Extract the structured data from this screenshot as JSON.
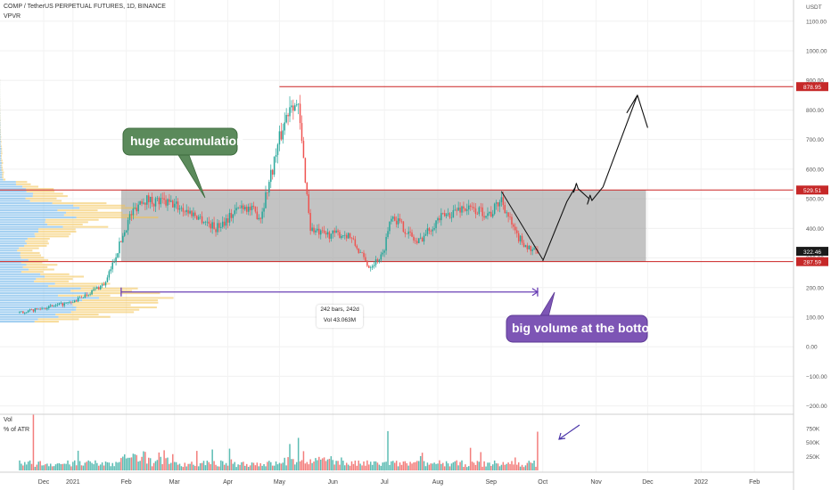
{
  "header": {
    "symbol_line": "COMP / TetherUS PERPETUAL FUTURES, 1D, BINANCE",
    "indicator": "VPVR",
    "volume_pane_label": "Vol",
    "volume_pane_sub": "% of ATR"
  },
  "annotations": {
    "accumulation_label": "huge accumulation",
    "bottom_volume_label": "big volume at the bottom",
    "measure_bars": "242 bars, 242d",
    "measure_vol": "Vol 43.063M"
  },
  "colors": {
    "up": "#26a69a",
    "down": "#ef5350",
    "range_box": "#9e9e9e",
    "level_line": "#cc2222",
    "callout_green": "#5b8a5b",
    "callout_purple": "#7d55b5",
    "measure_arrow": "#6a3fb5",
    "vp_blue": "#5aa9e6",
    "vp_yellow": "#f2c14e"
  },
  "chart_data": {
    "type": "candlestick",
    "title": "COMP / TetherUS PERPETUAL FUTURES, 1D, BINANCE",
    "currency": "USDT",
    "price_axis": {
      "ticks": [
        1100,
        1000,
        900,
        800,
        700,
        600,
        500,
        400,
        300,
        200,
        100,
        0,
        -100,
        -200
      ],
      "tick_labels": [
        "1100.00",
        "1000.00",
        "900.00",
        "800.00",
        "700.00",
        "600.00",
        "500.00",
        "400.00",
        "300.00",
        "200.00",
        "100.00",
        "0.00",
        "−100.00",
        "−200.00"
      ],
      "ylim": [
        -210,
        1150
      ]
    },
    "time_axis": {
      "labels": [
        "Dec",
        "2021",
        "Feb",
        "Mar",
        "Apr",
        "May",
        "Jun",
        "Jul",
        "Aug",
        "Sep",
        "Oct",
        "Nov",
        "Dec",
        "2022",
        "Feb"
      ]
    },
    "levels": [
      {
        "value": 878.95,
        "label": "878.95"
      },
      {
        "value": 529.51,
        "label": "529.51"
      },
      {
        "value": 287.59,
        "label": "287.59"
      }
    ],
    "last_price": {
      "value": 322.46,
      "label": "322.46"
    },
    "range_box": {
      "top": 529.51,
      "bottom": 287.59,
      "start": "2021-01-29",
      "end": "2021-11-30"
    },
    "measure": {
      "start": "2021-01-29",
      "end": "2021-09-28",
      "price": 185,
      "bars": 242
    },
    "key_points": [
      {
        "date": "2020-12-01",
        "price": 115
      },
      {
        "date": "2021-01-01",
        "price": 150
      },
      {
        "date": "2021-01-20",
        "price": 215
      },
      {
        "date": "2021-02-03",
        "price": 440
      },
      {
        "date": "2021-02-10",
        "price": 500
      },
      {
        "date": "2021-03-01",
        "price": 480
      },
      {
        "date": "2021-03-15",
        "price": 440
      },
      {
        "date": "2021-03-25",
        "price": 400
      },
      {
        "date": "2021-04-10",
        "price": 480
      },
      {
        "date": "2021-04-20",
        "price": 440
      },
      {
        "date": "2021-05-01",
        "price": 700
      },
      {
        "date": "2021-05-08",
        "price": 840
      },
      {
        "date": "2021-05-12",
        "price": 800
      },
      {
        "date": "2021-05-19",
        "price": 400
      },
      {
        "date": "2021-05-25",
        "price": 380
      },
      {
        "date": "2021-06-10",
        "price": 380
      },
      {
        "date": "2021-06-22",
        "price": 270
      },
      {
        "date": "2021-06-30",
        "price": 310
      },
      {
        "date": "2021-07-05",
        "price": 450
      },
      {
        "date": "2021-07-20",
        "price": 350
      },
      {
        "date": "2021-08-01",
        "price": 430
      },
      {
        "date": "2021-08-15",
        "price": 470
      },
      {
        "date": "2021-09-01",
        "price": 450
      },
      {
        "date": "2021-09-07",
        "price": 500
      },
      {
        "date": "2021-09-15",
        "price": 380
      },
      {
        "date": "2021-09-25",
        "price": 320
      },
      {
        "date": "2021-09-28",
        "price": 322.46
      }
    ],
    "projection": [
      {
        "date": "2021-10-01",
        "price": 290
      },
      {
        "date": "2021-10-15",
        "price": 490
      },
      {
        "date": "2021-10-20",
        "price": 540
      },
      {
        "date": "2021-10-28",
        "price": 500
      },
      {
        "date": "2021-11-05",
        "price": 540
      },
      {
        "date": "2021-11-25",
        "price": 850
      },
      {
        "date": "2021-12-01",
        "price": 740
      }
    ],
    "volume_axis": {
      "ticks": [
        750,
        500,
        250
      ],
      "tick_labels": [
        "750K",
        "500K",
        "250K"
      ],
      "unit": "K"
    },
    "volume_spikes": [
      {
        "date": "2020-12-09",
        "value": 1000
      },
      {
        "date": "2021-05-12",
        "value": 580
      },
      {
        "date": "2021-07-03",
        "value": 700
      },
      {
        "date": "2021-09-28",
        "value": 690
      }
    ]
  }
}
